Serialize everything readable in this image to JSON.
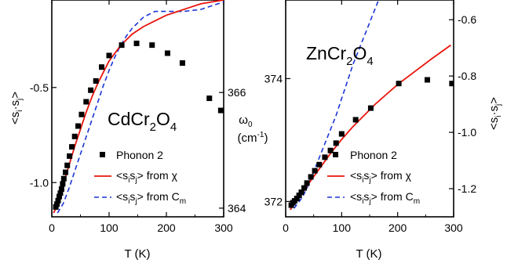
{
  "chart_data": [
    {
      "type": "scatter",
      "panel": "left",
      "compound": "CdCr2O4",
      "compound_parts": [
        "CdCr",
        "2",
        "O",
        "4"
      ],
      "xlabel": "T (K)",
      "ylabel_left": "<s_i·s_j>",
      "ylabel_left_parts": [
        "<s",
        "i",
        "·s",
        "j",
        ">"
      ],
      "ylabel_right": "ω0 (cm-1)",
      "ylabel_right_parts": [
        "ω",
        "0",
        "(cm",
        "-1",
        ")"
      ],
      "xlim": [
        0,
        300
      ],
      "ylim_left": [
        -1.18,
        -0.04
      ],
      "ylim_right": [
        363.85,
        367.6
      ],
      "x_ticks": [
        0,
        100,
        200,
        300
      ],
      "y_ticks_left": [
        -1.0,
        -0.5
      ],
      "y_ticks_right": [
        364,
        366
      ],
      "legend": {
        "placement": "bottom-right",
        "entries": [
          {
            "series": "phonon",
            "parts": [
              "Phonon 2"
            ]
          },
          {
            "series": "chi",
            "parts": [
              "<s",
              "i",
              "s",
              "j",
              "> from χ"
            ]
          },
          {
            "series": "cm",
            "parts": [
              "<s",
              "i",
              "s",
              "j",
              "> from C",
              "m"
            ]
          }
        ]
      },
      "series": [
        {
          "name": "Phonon 2",
          "axis": "right",
          "style": "square-marker",
          "color": "#000000",
          "x": [
            7,
            9,
            11,
            13,
            15,
            17,
            19,
            21,
            24,
            27,
            31,
            35,
            40,
            46,
            52,
            60,
            68,
            77,
            87,
            100,
            122,
            148,
            175,
            202,
            228,
            275,
            295
          ],
          "y": [
            364.02,
            364.07,
            364.13,
            364.2,
            364.26,
            364.33,
            364.42,
            364.51,
            364.62,
            364.74,
            364.9,
            365.06,
            365.24,
            365.42,
            365.62,
            365.84,
            366.04,
            366.2,
            366.44,
            366.64,
            366.82,
            366.85,
            366.82,
            366.68,
            366.51,
            365.9,
            365.69
          ]
        },
        {
          "name": "<sisj> from χ",
          "axis": "left",
          "style": "solid-line",
          "color": "#e8140c",
          "x": [
            3,
            10,
            20,
            30,
            40,
            50,
            60,
            70,
            80,
            90,
            100,
            120,
            140,
            160,
            180,
            200,
            220,
            240,
            260,
            280,
            300
          ],
          "y": [
            -1.16,
            -1.12,
            -1.01,
            -0.91,
            -0.81,
            -0.72,
            -0.63,
            -0.55,
            -0.48,
            -0.42,
            -0.36,
            -0.28,
            -0.22,
            -0.18,
            -0.15,
            -0.12,
            -0.1,
            -0.08,
            -0.06,
            -0.05,
            -0.04
          ]
        },
        {
          "name": "<sisj> from Cm",
          "axis": "left",
          "style": "dashed-line",
          "color": "#1a35d6",
          "x": [
            10,
            20,
            30,
            40,
            50,
            60,
            70,
            80,
            90,
            100,
            110,
            120,
            130,
            140,
            160,
            180,
            200,
            230,
            260,
            280,
            300
          ],
          "y": [
            -1.16,
            -1.11,
            -1.03,
            -0.94,
            -0.85,
            -0.76,
            -0.67,
            -0.58,
            -0.49,
            -0.41,
            -0.34,
            -0.28,
            -0.23,
            -0.19,
            -0.13,
            -0.1,
            -0.1,
            -0.1,
            -0.09,
            -0.07,
            -0.05
          ]
        }
      ]
    },
    {
      "type": "scatter",
      "panel": "right",
      "compound": "ZnCr2O4",
      "compound_parts": [
        "ZnCr",
        "2",
        "O",
        "4"
      ],
      "xlabel": "T (K)",
      "ylabel_right": "<s_i·s_j>",
      "ylabel_right_parts": [
        "<s",
        "i",
        "·s",
        "j",
        ">"
      ],
      "xlim": [
        0,
        300
      ],
      "ylim_left": [
        371.75,
        375.28
      ],
      "ylim_right": [
        -1.3,
        -0.53
      ],
      "x_ticks": [
        0,
        100,
        200,
        300
      ],
      "y_ticks_left": [
        372,
        374
      ],
      "y_ticks_right": [
        -1.2,
        -1.0,
        -0.8,
        -0.6
      ],
      "legend": {
        "placement": "bottom-right",
        "entries": [
          {
            "series": "phonon",
            "parts": [
              "Phonon 2"
            ]
          },
          {
            "series": "chi",
            "parts": [
              "<s",
              "i",
              "s",
              "j",
              "> from χ"
            ]
          },
          {
            "series": "cm",
            "parts": [
              "<s",
              "i",
              "s",
              "j",
              "> from C",
              "m"
            ]
          }
        ]
      },
      "series": [
        {
          "name": "Phonon 2",
          "axis": "left",
          "style": "square-marker",
          "color": "#000000",
          "x": [
            10,
            13,
            16,
            20,
            24,
            28,
            33,
            38,
            45,
            52,
            60,
            70,
            80,
            90,
            100,
            125,
            152,
            202,
            253,
            297
          ],
          "y": [
            371.94,
            371.98,
            372.01,
            372.05,
            372.1,
            372.15,
            372.22,
            372.3,
            372.4,
            372.5,
            372.6,
            372.72,
            372.83,
            372.95,
            373.1,
            373.33,
            373.52,
            373.92,
            373.98,
            373.92
          ]
        },
        {
          "name": "<sisj> from χ",
          "axis": "right",
          "style": "solid-line",
          "color": "#e8140c",
          "x": [
            8,
            20,
            40,
            60,
            80,
            100,
            120,
            140,
            160,
            180,
            200,
            230,
            260,
            295
          ],
          "y": [
            -1.275,
            -1.245,
            -1.185,
            -1.13,
            -1.075,
            -1.025,
            -0.98,
            -0.94,
            -0.9,
            -0.865,
            -0.83,
            -0.785,
            -0.74,
            -0.69
          ]
        },
        {
          "name": "<sisj> from Cm",
          "axis": "right",
          "style": "dashed-line",
          "color": "#1a35d6",
          "x": [
            15,
            30,
            40,
            50,
            60,
            70,
            80,
            90,
            100,
            110,
            120,
            130,
            140,
            150,
            160,
            165
          ],
          "y": [
            -1.27,
            -1.23,
            -1.19,
            -1.14,
            -1.09,
            -1.04,
            -0.99,
            -0.94,
            -0.88,
            -0.82,
            -0.76,
            -0.71,
            -0.66,
            -0.61,
            -0.56,
            -0.535
          ]
        }
      ]
    }
  ]
}
